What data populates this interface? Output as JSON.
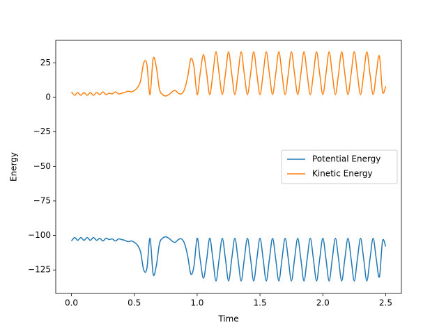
{
  "chart_data": {
    "type": "line",
    "xlabel": "Time",
    "ylabel": "Energy",
    "x": [
      0,
      0.025,
      0.05,
      0.075,
      0.1,
      0.125,
      0.15,
      0.175,
      0.2,
      0.225,
      0.25,
      0.275,
      0.3,
      0.325,
      0.35,
      0.375,
      0.4,
      0.425,
      0.45,
      0.475,
      0.5,
      0.525,
      0.55,
      0.575,
      0.6,
      0.625,
      0.65,
      0.675,
      0.7,
      0.725,
      0.75,
      0.775,
      0.8,
      0.825,
      0.85,
      0.875,
      0.9,
      0.925,
      0.95,
      0.975,
      1,
      1.025,
      1.05,
      1.075,
      1.1,
      1.125,
      1.15,
      1.175,
      1.2,
      1.225,
      1.25,
      1.275,
      1.3,
      1.325,
      1.35,
      1.375,
      1.4,
      1.425,
      1.45,
      1.475,
      1.5,
      1.525,
      1.55,
      1.575,
      1.6,
      1.625,
      1.65,
      1.675,
      1.7,
      1.725,
      1.75,
      1.775,
      1.8,
      1.825,
      1.85,
      1.875,
      1.9,
      1.925,
      1.95,
      1.975,
      2,
      2.025,
      2.05,
      2.075,
      2.1,
      2.125,
      2.15,
      2.175,
      2.2,
      2.225,
      2.25,
      2.275,
      2.3,
      2.325,
      2.35,
      2.375,
      2.4,
      2.425,
      2.45,
      2.475,
      2.5
    ],
    "series": [
      {
        "name": "Potential Energy",
        "color": "#1f77b4",
        "values": [
          -104,
          -101.5,
          -103.5,
          -101.5,
          -103.5,
          -101.5,
          -103.5,
          -101.5,
          -103.5,
          -102,
          -104,
          -102,
          -103,
          -102.5,
          -104,
          -102.5,
          -103,
          -103.5,
          -104.5,
          -104,
          -105,
          -107,
          -112,
          -125,
          -124,
          -102,
          -128,
          -122,
          -106,
          -102,
          -101,
          -102,
          -104,
          -105,
          -103,
          -102.5,
          -106,
          -115,
          -128,
          -122,
          -102,
          -118,
          -131,
          -118,
          -102,
          -117,
          -133,
          -117,
          -102,
          -117,
          -133,
          -117,
          -102,
          -117,
          -133,
          -117,
          -102,
          -117,
          -133,
          -117,
          -102,
          -117,
          -133,
          -117,
          -102,
          -117,
          -133,
          -117,
          -102,
          -117,
          -133,
          -117,
          -102,
          -117,
          -133,
          -117,
          -102,
          -117,
          -133,
          -117,
          -102,
          -117,
          -133,
          -117,
          -102,
          -117,
          -133,
          -117,
          -102,
          -117,
          -133,
          -117,
          -102,
          -117,
          -133,
          -117,
          -102,
          -117,
          -130,
          -104,
          -108
        ]
      },
      {
        "name": "Kinetic Energy",
        "color": "#ff7f0e",
        "values": [
          4,
          1.5,
          3.5,
          1.5,
          3.5,
          1.5,
          3.5,
          1.5,
          3.5,
          2,
          4,
          2,
          3,
          2.5,
          4,
          2.5,
          3,
          3.5,
          4.5,
          4,
          5,
          7,
          12,
          25,
          24,
          2,
          28,
          22,
          6,
          2,
          1,
          2,
          4,
          5,
          3,
          2.5,
          6,
          15,
          28,
          22,
          2,
          18,
          31,
          18,
          2,
          17,
          33,
          17,
          2,
          17,
          33,
          17,
          2,
          17,
          33,
          17,
          2,
          17,
          33,
          17,
          2,
          17,
          33,
          17,
          2,
          17,
          33,
          17,
          2,
          17,
          33,
          17,
          2,
          17,
          33,
          17,
          2,
          17,
          33,
          17,
          2,
          17,
          33,
          17,
          2,
          17,
          33,
          17,
          2,
          17,
          33,
          17,
          2,
          17,
          33,
          17,
          2,
          17,
          30,
          4,
          8
        ]
      }
    ],
    "xlim": [
      -0.125,
      2.625
    ],
    "ylim": [
      -142,
      41.3
    ],
    "xticks": [
      {
        "value": 0,
        "label": "0.0"
      },
      {
        "value": 0.5,
        "label": "0.5"
      },
      {
        "value": 1,
        "label": "1.0"
      },
      {
        "value": 1.5,
        "label": "1.5"
      },
      {
        "value": 2,
        "label": "2.0"
      },
      {
        "value": 2.5,
        "label": "2.5"
      }
    ],
    "yticks": [
      {
        "value": -125,
        "label": "−125"
      },
      {
        "value": -100,
        "label": "−100"
      },
      {
        "value": -75,
        "label": "−75"
      },
      {
        "value": -50,
        "label": "−50"
      },
      {
        "value": -25,
        "label": "−25"
      },
      0,
      25
    ],
    "legend": "center right"
  }
}
